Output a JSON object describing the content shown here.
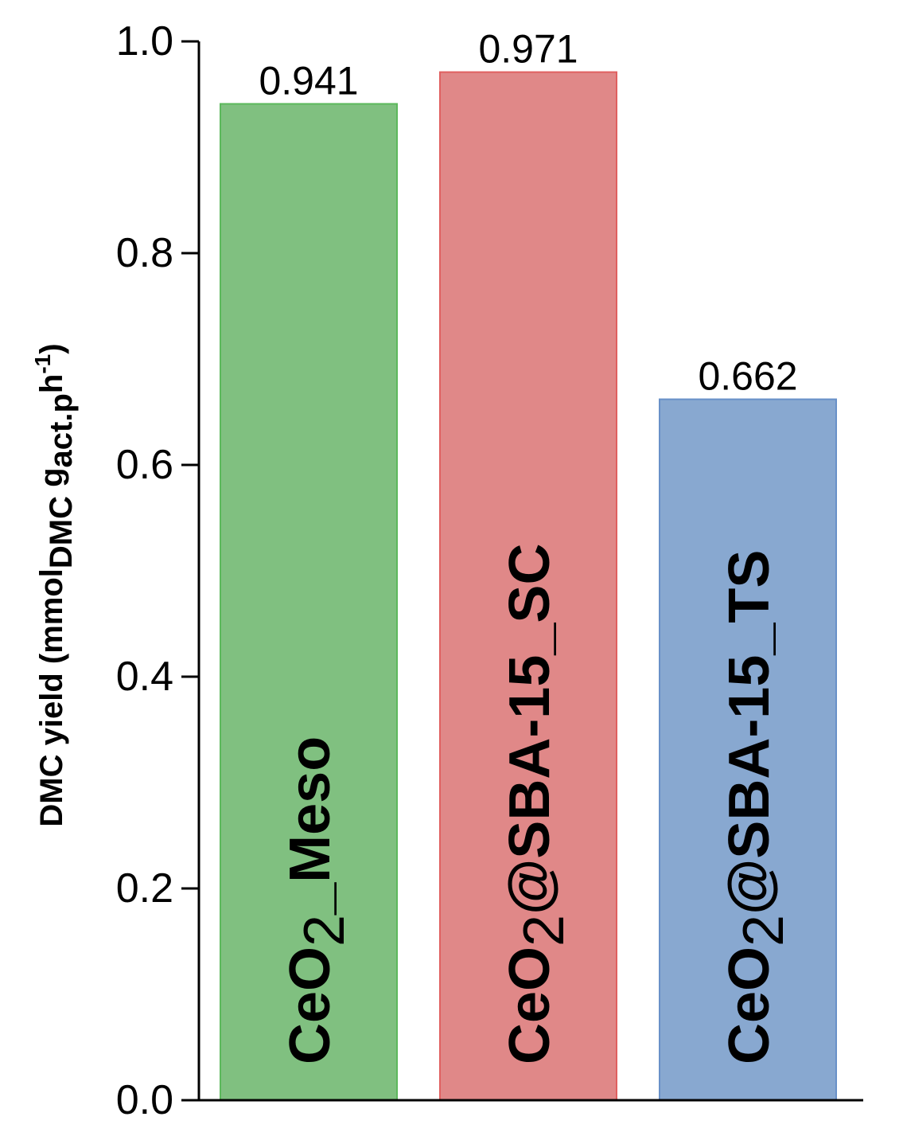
{
  "chart_data": {
    "type": "bar",
    "categories": [
      "CeO2_Meso",
      "CeO2@SBA-15_SC",
      "CeO2@SBA-15_TS"
    ],
    "category_labels": [
      {
        "pre": "CeO",
        "sub": "2",
        "post": "_Meso"
      },
      {
        "pre": "CeO",
        "sub": "2",
        "post": "@SBA-15_SC"
      },
      {
        "pre": "CeO",
        "sub": "2",
        "post": "@SBA-15_TS"
      }
    ],
    "values": [
      0.941,
      0.971,
      0.662
    ],
    "value_labels": [
      "0.941",
      "0.971",
      "0.662"
    ],
    "colors": {
      "fill": [
        "#80c080",
        "#e08888",
        "#88a8d0"
      ],
      "stroke": [
        "#5cb85c",
        "#e06060",
        "#6890c8"
      ]
    },
    "ylabel": {
      "main": "DMC yield (mmol",
      "sub1": "DMC",
      "mid": " g",
      "sub2": "act.p",
      "tail": "h",
      "sup": "-1",
      "close": ")"
    },
    "ylim": [
      0,
      1.0
    ],
    "yticks": [
      0.0,
      0.2,
      0.4,
      0.6,
      0.8,
      1.0
    ],
    "ytick_labels": [
      "0.0",
      "0.2",
      "0.4",
      "0.6",
      "0.8",
      "1.0"
    ],
    "grid": false,
    "legend": "none"
  }
}
